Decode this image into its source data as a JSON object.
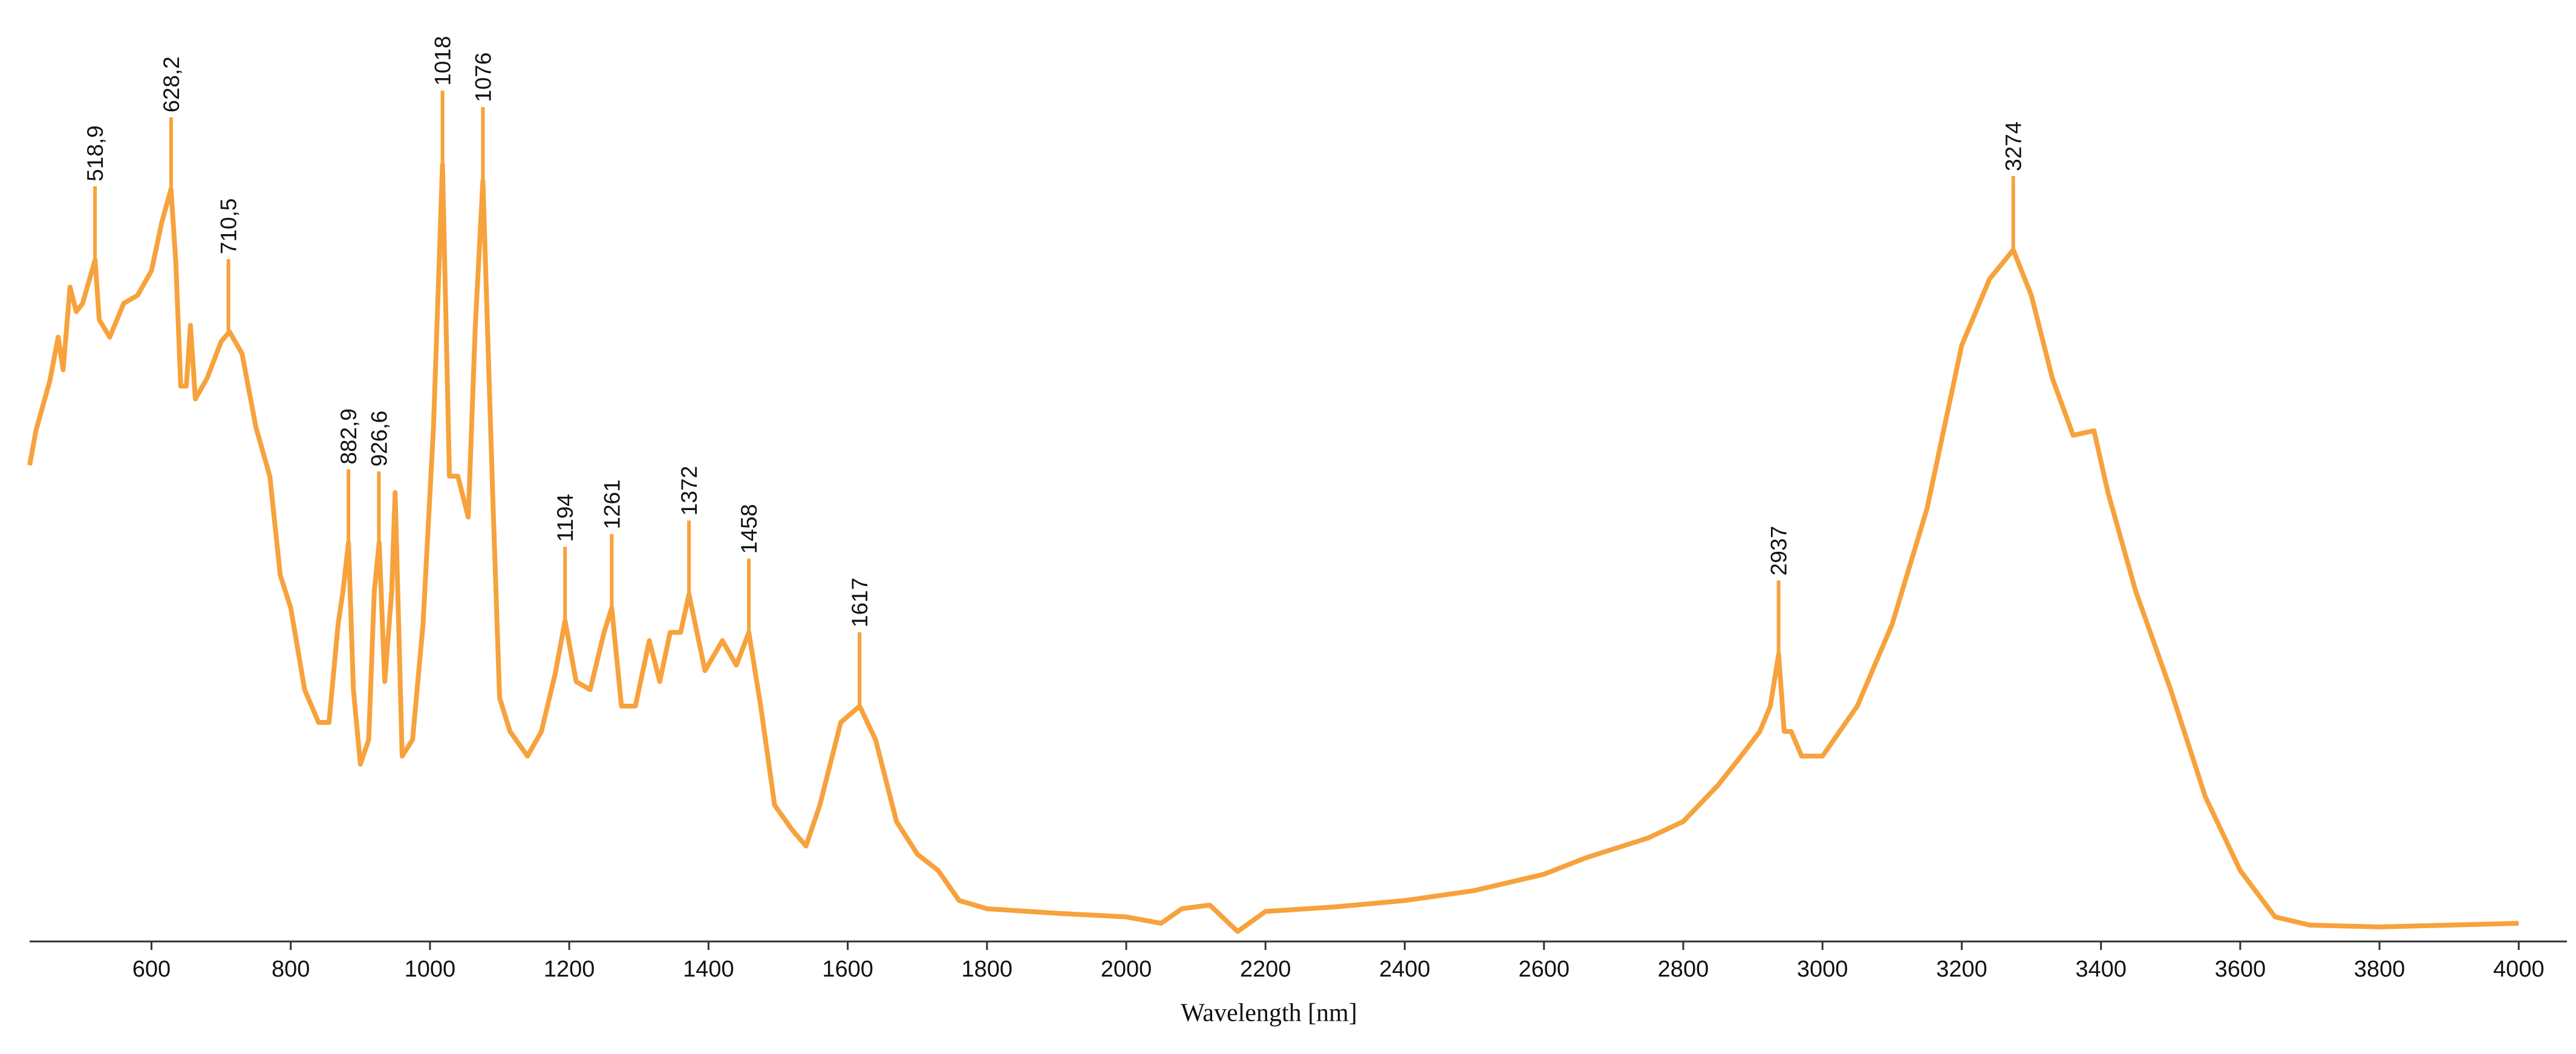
{
  "chart_data": {
    "type": "line",
    "x_label": "Wavelength [nm]",
    "xlim": [
      425,
      4064
    ],
    "ylim": [
      0,
      1
    ],
    "xticks": [
      600,
      800,
      1000,
      1200,
      1400,
      1600,
      1800,
      2000,
      2200,
      2400,
      2600,
      2800,
      3000,
      3200,
      3400,
      3600,
      3800,
      4000
    ],
    "series": [
      {
        "color": "#f7a23c",
        "x": [
          425,
          434,
          454,
          466,
          473,
          483,
          492,
          501,
          519,
          525,
          540,
          560,
          580,
          600,
          615,
          628,
          635,
          642,
          650,
          656,
          663,
          680,
          700,
          712,
          730,
          750,
          770,
          785,
          800,
          820,
          840,
          855,
          868,
          875,
          883,
          890,
          900,
          912,
          920,
          927,
          935,
          945,
          950,
          960,
          975,
          990,
          1005,
          1018,
          1028,
          1040,
          1055,
          1065,
          1076,
          1090,
          1100,
          1115,
          1140,
          1160,
          1180,
          1194,
          1210,
          1230,
          1250,
          1261,
          1275,
          1295,
          1315,
          1330,
          1345,
          1360,
          1372,
          1395,
          1420,
          1440,
          1458,
          1475,
          1495,
          1520,
          1540,
          1560,
          1590,
          1617,
          1640,
          1670,
          1700,
          1730,
          1760,
          1800,
          1900,
          2000,
          2050,
          2080,
          2120,
          2160,
          2200,
          2300,
          2400,
          2500,
          2600,
          2660,
          2750,
          2800,
          2850,
          2880,
          2910,
          2925,
          2937,
          2945,
          2955,
          2970,
          3000,
          3050,
          3100,
          3150,
          3200,
          3240,
          3274,
          3300,
          3330,
          3360,
          3390,
          3410,
          3450,
          3500,
          3550,
          3600,
          3650,
          3700,
          3800,
          3900,
          4000
        ],
        "values": [
          0.524,
          0.562,
          0.617,
          0.665,
          0.629,
          0.72,
          0.693,
          0.702,
          0.75,
          0.684,
          0.665,
          0.702,
          0.711,
          0.738,
          0.792,
          0.828,
          0.747,
          0.611,
          0.611,
          0.678,
          0.597,
          0.62,
          0.66,
          0.671,
          0.647,
          0.566,
          0.512,
          0.403,
          0.367,
          0.277,
          0.241,
          0.241,
          0.349,
          0.385,
          0.439,
          0.277,
          0.195,
          0.222,
          0.385,
          0.439,
          0.286,
          0.385,
          0.494,
          0.204,
          0.222,
          0.349,
          0.566,
          0.855,
          0.512,
          0.512,
          0.467,
          0.675,
          0.837,
          0.494,
          0.268,
          0.231,
          0.204,
          0.231,
          0.295,
          0.353,
          0.286,
          0.277,
          0.34,
          0.367,
          0.259,
          0.259,
          0.331,
          0.286,
          0.34,
          0.34,
          0.382,
          0.298,
          0.331,
          0.304,
          0.34,
          0.259,
          0.15,
          0.123,
          0.105,
          0.15,
          0.241,
          0.259,
          0.222,
          0.132,
          0.096,
          0.078,
          0.045,
          0.036,
          0.031,
          0.027,
          0.02,
          0.036,
          0.04,
          0.011,
          0.033,
          0.038,
          0.045,
          0.056,
          0.074,
          0.092,
          0.114,
          0.132,
          0.172,
          0.201,
          0.231,
          0.259,
          0.316,
          0.231,
          0.231,
          0.204,
          0.204,
          0.259,
          0.349,
          0.476,
          0.656,
          0.729,
          0.761,
          0.711,
          0.62,
          0.557,
          0.562,
          0.494,
          0.385,
          0.277,
          0.159,
          0.078,
          0.027,
          0.018,
          0.016,
          0.018,
          0.02
        ]
      }
    ],
    "peaks": [
      {
        "value": 518.9,
        "label": "518,9"
      },
      {
        "value": 628.2,
        "label": "628,2"
      },
      {
        "value": 710.5,
        "label": "710,5"
      },
      {
        "value": 882.9,
        "label": "882,9"
      },
      {
        "value": 926.6,
        "label": "926,6"
      },
      1018,
      1076,
      1194,
      1261,
      1372,
      1458,
      1617,
      2937,
      3274
    ]
  }
}
